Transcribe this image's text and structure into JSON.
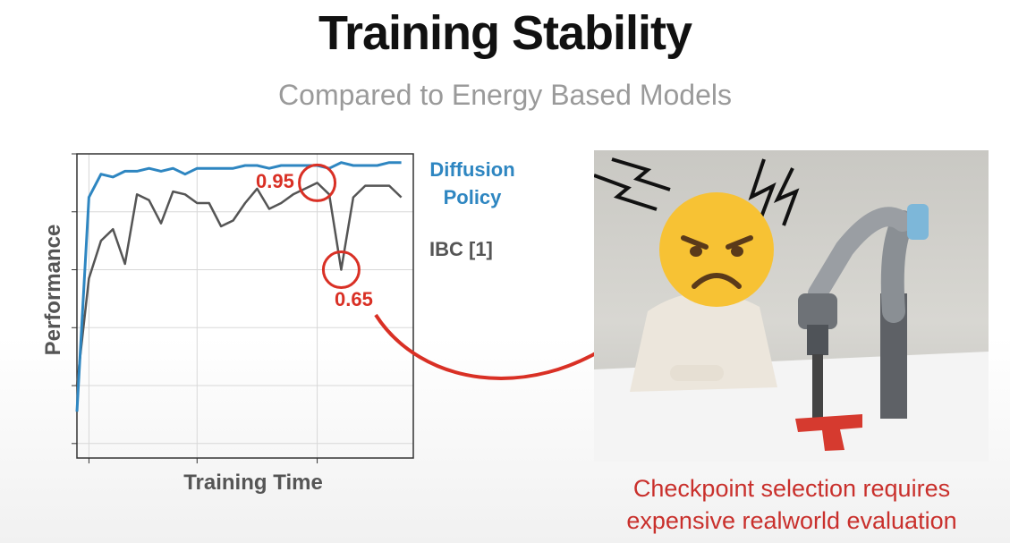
{
  "slide": {
    "title": "Training Stability",
    "subtitle": "Compared to Energy Based Models",
    "caption_line1": "Checkpoint selection requires",
    "caption_line2": "expensive realworld evaluation"
  },
  "annotations": {
    "peak_label": "0.95",
    "dip_label": "0.65"
  },
  "colors": {
    "diffusion": "#2e86c1",
    "ibc": "#555555",
    "annotation": "#d93025"
  },
  "illustration": {
    "emoji_face": "angry-face-emoji",
    "props": [
      "robot-arm",
      "t-block",
      "table"
    ]
  },
  "chart_data": {
    "type": "line",
    "xlabel": "Training Time",
    "ylabel": "Performance",
    "xlim": [
      0,
      28
    ],
    "ylim": [
      0.0,
      1.05
    ],
    "grid": true,
    "legend": "right",
    "series": [
      {
        "name_lines": [
          "Diffusion",
          "Policy"
        ],
        "x": [
          0,
          1,
          2,
          3,
          4,
          5,
          6,
          7,
          8,
          9,
          10,
          11,
          12,
          13,
          14,
          15,
          16,
          17,
          18,
          19,
          20,
          21,
          22,
          23,
          24,
          25,
          26,
          27
        ],
        "y": [
          0.16,
          0.9,
          0.98,
          0.97,
          0.99,
          0.99,
          1.0,
          0.99,
          1.0,
          0.98,
          1.0,
          1.0,
          1.0,
          1.0,
          1.01,
          1.01,
          1.0,
          1.01,
          1.01,
          1.01,
          1.01,
          1.0,
          1.02,
          1.01,
          1.01,
          1.01,
          1.02,
          1.02
        ]
      },
      {
        "name": "IBC [1]",
        "x": [
          0,
          1,
          2,
          3,
          4,
          5,
          6,
          7,
          8,
          9,
          10,
          11,
          12,
          13,
          14,
          15,
          16,
          17,
          18,
          19,
          20,
          21,
          22,
          23,
          24,
          25,
          26,
          27
        ],
        "y": [
          0.25,
          0.62,
          0.75,
          0.79,
          0.67,
          0.91,
          0.89,
          0.81,
          0.92,
          0.91,
          0.88,
          0.88,
          0.8,
          0.82,
          0.88,
          0.93,
          0.86,
          0.88,
          0.91,
          0.93,
          0.95,
          0.91,
          0.65,
          0.9,
          0.94,
          0.94,
          0.94,
          0.9
        ]
      }
    ],
    "highlights": [
      {
        "series": 1,
        "x": 20,
        "y": 0.95,
        "label": "0.95"
      },
      {
        "series": 1,
        "x": 22,
        "y": 0.65,
        "label": "0.65"
      }
    ]
  }
}
